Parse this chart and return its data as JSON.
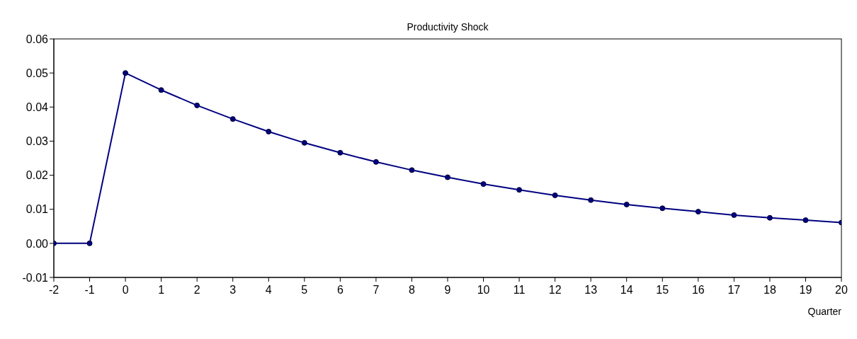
{
  "chart_data": {
    "type": "line",
    "title": "Productivity Shock",
    "xlabel": "Quarter",
    "x": [
      -2,
      -1,
      0,
      1,
      2,
      3,
      4,
      5,
      6,
      7,
      8,
      9,
      10,
      11,
      12,
      13,
      14,
      15,
      16,
      17,
      18,
      19,
      20
    ],
    "series": [
      {
        "color": "#000080",
        "values": [
          0,
          0,
          0.05,
          0.045,
          0.0405,
          0.0365,
          0.0328,
          0.0295,
          0.0266,
          0.0239,
          0.0215,
          0.0194,
          0.0174,
          0.0157,
          0.0141,
          0.0127,
          0.0114,
          0.0103,
          0.0093,
          0.0083,
          0.0075,
          0.0068,
          0.0061
        ]
      }
    ],
    "xlim": [
      -2,
      20
    ],
    "xticks": [
      -2,
      -1,
      0,
      1,
      2,
      3,
      4,
      5,
      6,
      7,
      8,
      9,
      10,
      11,
      12,
      13,
      14,
      15,
      16,
      17,
      18,
      19,
      20
    ],
    "ylim": [
      -0.01,
      0.06
    ],
    "yticks": [
      {
        "value": -0.01,
        "label": "-0.01"
      },
      {
        "value": 0,
        "label": "0.00"
      },
      {
        "value": 0.01,
        "label": "0.01"
      },
      {
        "value": 0.02,
        "label": "0.02"
      },
      {
        "value": 0.03,
        "label": "0.03"
      },
      {
        "value": 0.04,
        "label": "0.04"
      },
      {
        "value": 0.05,
        "label": "0.05"
      },
      {
        "value": 0.06,
        "label": "0.06"
      }
    ],
    "grid": false,
    "legend": false,
    "marker": "circle",
    "line_style": "solid"
  }
}
